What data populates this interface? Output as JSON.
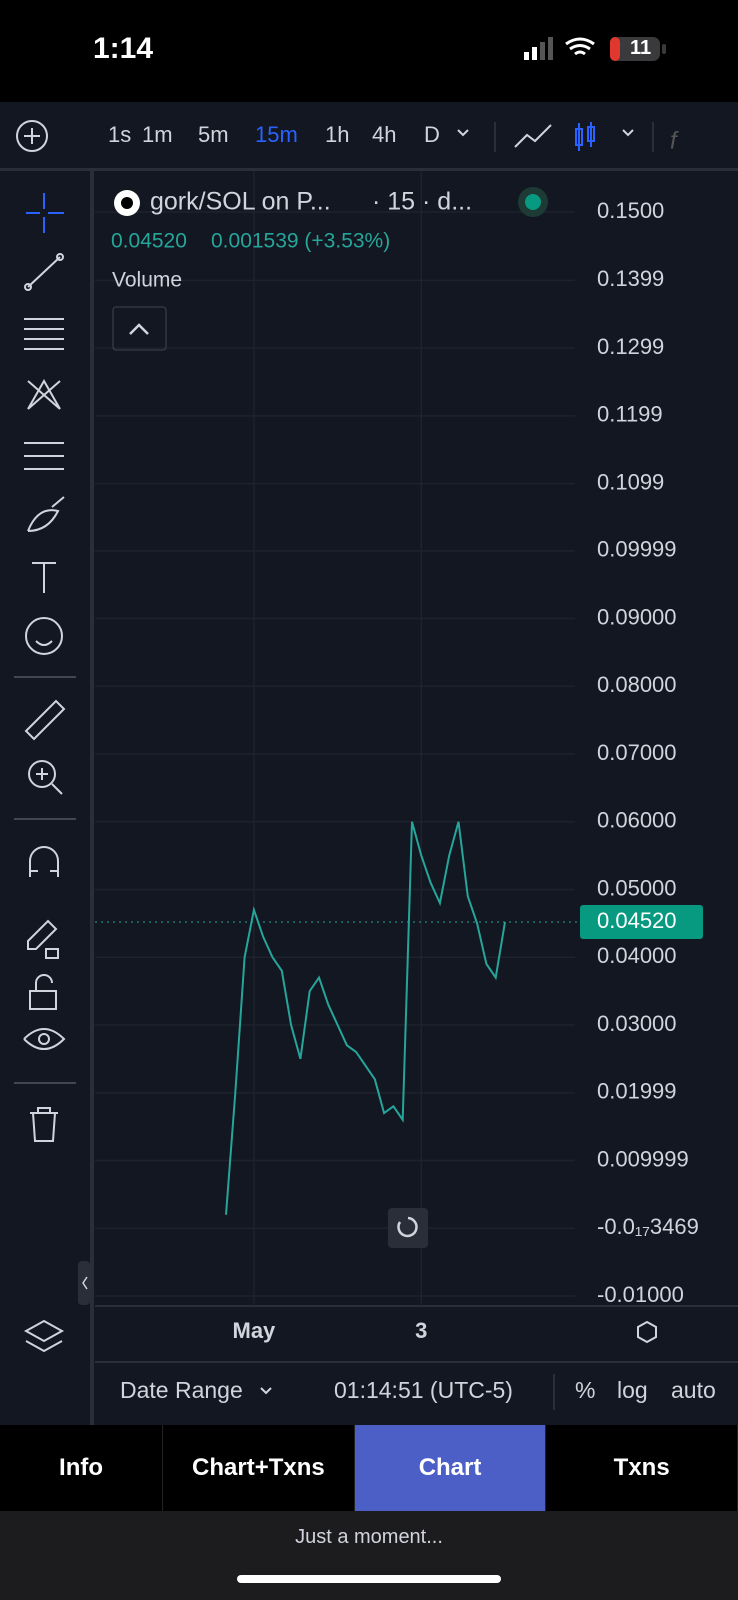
{
  "status_bar": {
    "time": "1:14",
    "battery": "11"
  },
  "toolbar": {
    "timeframes": [
      {
        "label": "1s",
        "color": "#d1d4dc"
      },
      {
        "label": "1m",
        "color": "#d1d4dc"
      },
      {
        "label": "5m",
        "color": "#d1d4dc"
      },
      {
        "label": "15m",
        "color": "#2962ff"
      },
      {
        "label": "1h",
        "color": "#d1d4dc"
      },
      {
        "label": "4h",
        "color": "#d1d4dc"
      },
      {
        "label": "D",
        "color": "#d1d4dc"
      }
    ]
  },
  "legend": {
    "symbol": "gork/SOL on P...",
    "interval": "· 15 · d...",
    "change": "0.001539 (+3.53%)",
    "volume_label": "Volume"
  },
  "chart_data": {
    "type": "line",
    "categories": [
      null,
      null,
      null,
      "May",
      null,
      null,
      null,
      null,
      null,
      null,
      null,
      null,
      null,
      null,
      null,
      null,
      null,
      null,
      null,
      null,
      null,
      "3",
      null,
      null,
      null,
      null,
      null,
      null,
      null,
      null,
      null
    ],
    "series": [
      {
        "name": "gork/SOL",
        "color": "#26a69a",
        "values": [
          0.002,
          0.02,
          0.04,
          0.047,
          0.043,
          0.04,
          0.038,
          0.03,
          0.025,
          0.035,
          0.037,
          0.033,
          0.03,
          0.027,
          0.026,
          0.024,
          0.022,
          0.017,
          0.018,
          0.016,
          0.06,
          0.055,
          0.051,
          0.048,
          0.055,
          0.06,
          0.049,
          0.045,
          0.039,
          0.037,
          0.0452
        ]
      }
    ],
    "last_value": {
      "value": 0.0452,
      "label": "0.04520"
    },
    "ylim": [
      -0.01,
      0.15
    ],
    "yticks": [
      {
        "value": 0.15,
        "label": "0.1500"
      },
      0.1399,
      0.1299,
      0.1199,
      0.1099,
      0.09999,
      {
        "value": 0.09,
        "label": "0.09000"
      },
      {
        "value": 0.08,
        "label": "0.08000"
      },
      {
        "value": 0.07,
        "label": "0.07000"
      },
      {
        "value": 0.06,
        "label": "0.06000"
      },
      {
        "value": 0.05,
        "label": "0.05000"
      },
      {
        "value": 0.04,
        "label": "0.04000"
      },
      {
        "value": 0.03,
        "label": "0.03000"
      },
      0.01999,
      0.009999,
      {
        "value": -3.469e-18,
        "label": "-0.0₁₇3469"
      },
      {
        "value": -0.01,
        "label": "-0.01000"
      }
    ],
    "grid": true
  },
  "bottom_bar": {
    "date_range": "Date Range",
    "clock": "01:14:51 (UTC-5)",
    "percent": "%",
    "log": "log",
    "auto": "auto"
  },
  "tabs": [
    "Info",
    "Chart+Txns",
    "Chart",
    "Txns"
  ],
  "footer": "Just a moment..."
}
